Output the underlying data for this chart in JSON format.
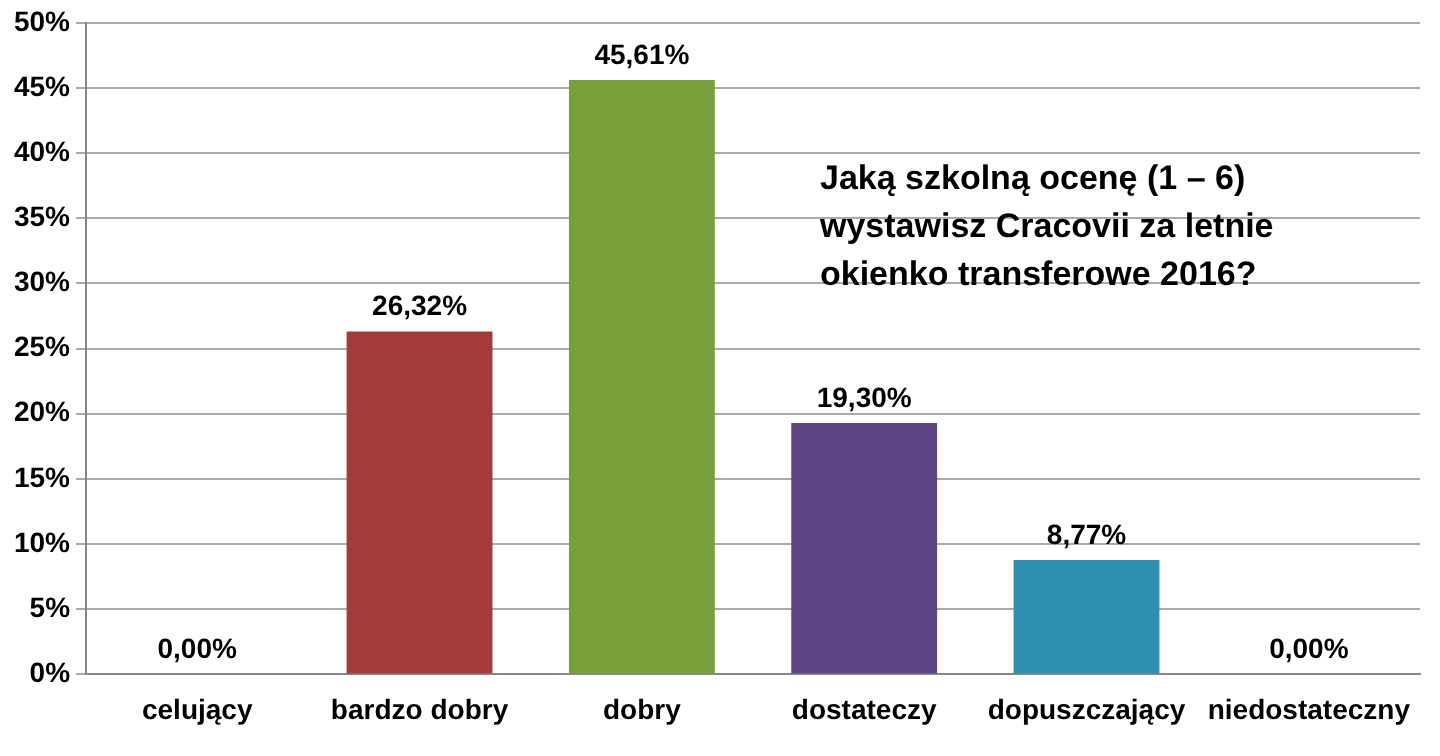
{
  "chart_data": {
    "type": "bar",
    "title": "Jaką szkolną ocenę (1 – 6) wystawisz Cracovii za letnie okienko transferowe 2016?",
    "categories": [
      "celujący",
      "bardzo dobry",
      "dobry",
      "dostateczy",
      "dopuszczający",
      "niedostateczny"
    ],
    "values": [
      0,
      26.32,
      45.61,
      19.3,
      8.77,
      0
    ],
    "value_labels": [
      "0,00%",
      "26,32%",
      "45,61%",
      "19,30%",
      "8,77%",
      "0,00%"
    ],
    "colors": [
      "#a33b3a",
      "#a33b3a",
      "#77a03b",
      "#5d4584",
      "#2f8fae",
      "#2f8fae"
    ],
    "ylim": [
      0,
      50
    ],
    "yticks": [
      {
        "value": 0,
        "label": "0%"
      },
      {
        "value": 5,
        "label": "5%"
      },
      {
        "value": 10,
        "label": "10%"
      },
      {
        "value": 15,
        "label": "15%"
      },
      {
        "value": 20,
        "label": "20%"
      },
      {
        "value": 25,
        "label": "25%"
      },
      {
        "value": 30,
        "label": "30%"
      },
      {
        "value": 35,
        "label": "35%"
      },
      {
        "value": 40,
        "label": "40%"
      },
      {
        "value": 45,
        "label": "45%"
      },
      {
        "value": 50,
        "label": "50%"
      }
    ],
    "grid": "y",
    "legend": false
  }
}
